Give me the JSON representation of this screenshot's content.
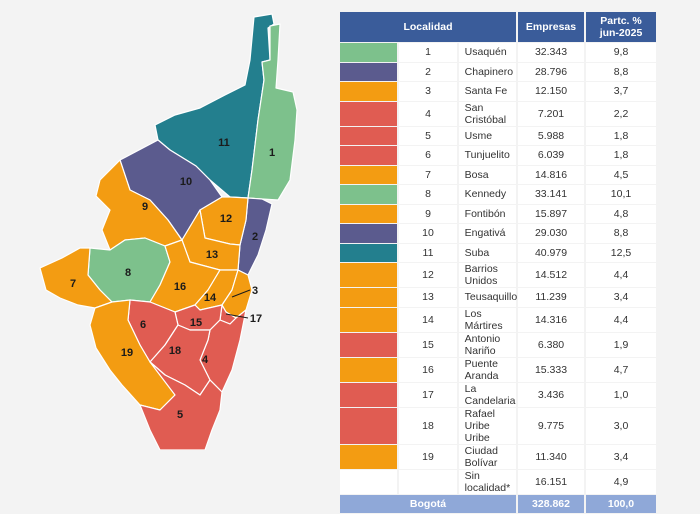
{
  "table": {
    "headers": [
      "Localidad",
      "Empresas",
      "Partc. %\njun-2025"
    ],
    "rows": [
      {
        "num": "1",
        "name": "Usaquén",
        "empresas": "32.343",
        "pct": "9,8",
        "color": "#7dc18c"
      },
      {
        "num": "2",
        "name": "Chapinero",
        "empresas": "28.796",
        "pct": "8,8",
        "color": "#5b5b8e"
      },
      {
        "num": "3",
        "name": "Santa Fe",
        "empresas": "12.150",
        "pct": "3,7",
        "color": "#f39c12"
      },
      {
        "num": "4",
        "name": "San Cristóbal",
        "empresas": "7.201",
        "pct": "2,2",
        "color": "#e05c52"
      },
      {
        "num": "5",
        "name": "Usme",
        "empresas": "5.988",
        "pct": "1,8",
        "color": "#e05c52"
      },
      {
        "num": "6",
        "name": "Tunjuelito",
        "empresas": "6.039",
        "pct": "1,8",
        "color": "#e05c52"
      },
      {
        "num": "7",
        "name": "Bosa",
        "empresas": "14.816",
        "pct": "4,5",
        "color": "#f39c12"
      },
      {
        "num": "8",
        "name": "Kennedy",
        "empresas": "33.141",
        "pct": "10,1",
        "color": "#7dc18c"
      },
      {
        "num": "9",
        "name": "Fontibón",
        "empresas": "15.897",
        "pct": "4,8",
        "color": "#f39c12"
      },
      {
        "num": "10",
        "name": "Engativá",
        "empresas": "29.030",
        "pct": "8,8",
        "color": "#5b5b8e"
      },
      {
        "num": "11",
        "name": "Suba",
        "empresas": "40.979",
        "pct": "12,5",
        "color": "#237f8e"
      },
      {
        "num": "12",
        "name": "Barrios Unidos",
        "empresas": "14.512",
        "pct": "4,4",
        "color": "#f39c12"
      },
      {
        "num": "13",
        "name": "Teusaquillo",
        "empresas": "11.239",
        "pct": "3,4",
        "color": "#f39c12"
      },
      {
        "num": "14",
        "name": "Los Mártires",
        "empresas": "14.316",
        "pct": "4,4",
        "color": "#f39c12"
      },
      {
        "num": "15",
        "name": "Antonio Nariño",
        "empresas": "6.380",
        "pct": "1,9",
        "color": "#e05c52"
      },
      {
        "num": "16",
        "name": "Puente Aranda",
        "empresas": "15.333",
        "pct": "4,7",
        "color": "#f39c12"
      },
      {
        "num": "17",
        "name": "La Candelaria",
        "empresas": "3.436",
        "pct": "1,0",
        "color": "#e05c52"
      },
      {
        "num": "18",
        "name": "Rafael Uribe Uribe",
        "empresas": "9.775",
        "pct": "3,0",
        "color": "#e05c52"
      },
      {
        "num": "19",
        "name": "Ciudad Bolívar",
        "empresas": "11.340",
        "pct": "3,4",
        "color": "#f39c12"
      },
      {
        "num": "",
        "name": "Sin localidad*",
        "empresas": "16.151",
        "pct": "4,9",
        "color": ""
      }
    ],
    "total": {
      "name": "Bogotá",
      "empresas": "328.862",
      "pct": "100,0"
    }
  },
  "map": {
    "labels": [
      "1",
      "2",
      "3",
      "4",
      "5",
      "6",
      "7",
      "8",
      "9",
      "10",
      "11",
      "12",
      "13",
      "14",
      "15",
      "16",
      "17",
      "18",
      "19"
    ]
  },
  "colors": {
    "green": "#7dc18c",
    "purple": "#5b5b8e",
    "orange": "#f39c12",
    "red": "#e05c52",
    "teal": "#237f8e",
    "header": "#3a5c9a",
    "total": "#8fa8d8"
  }
}
